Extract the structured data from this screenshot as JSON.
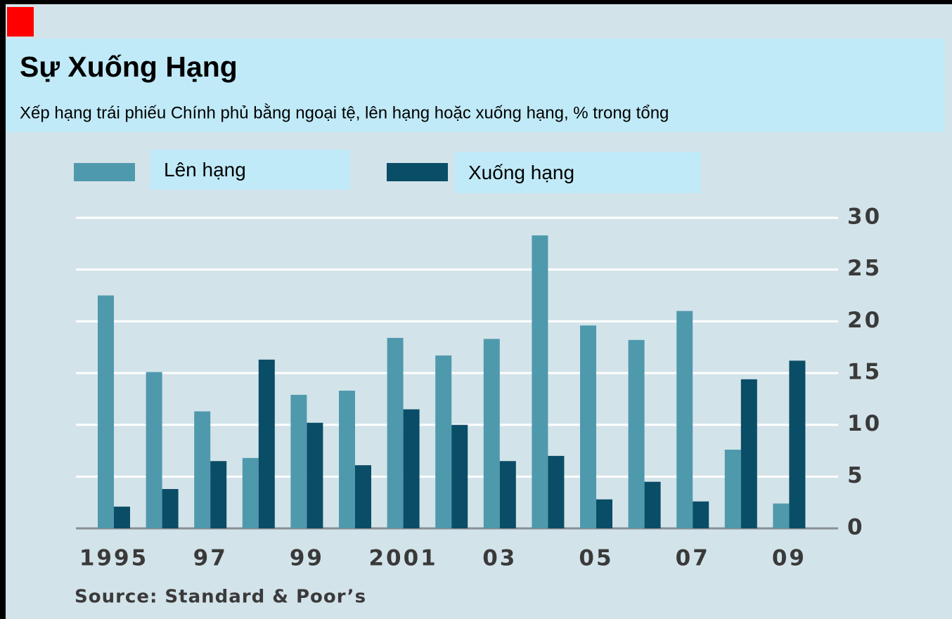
{
  "chart_data": {
    "type": "bar",
    "title": "Sự Xuống Hạng",
    "subtitle": "Xếp hạng trái phiếu Chính phủ bằng ngoại tệ, lên hạng hoặc xuống hạng, % trong tổng",
    "source": "Source: Standard & Poor’s",
    "categories": [
      "1995",
      null,
      "97",
      null,
      "99",
      null,
      "2001",
      null,
      "03",
      null,
      "05",
      null,
      "07",
      null,
      "09"
    ],
    "series": [
      {
        "name": "Lên hạng",
        "color": "#4f99ad",
        "values": [
          22.5,
          15.1,
          11.3,
          6.8,
          12.9,
          13.3,
          18.4,
          16.7,
          18.3,
          28.3,
          19.6,
          18.2,
          21.0,
          7.6,
          2.4
        ]
      },
      {
        "name": "Xuống hạng",
        "color": "#0a4d66",
        "values": [
          2.1,
          3.8,
          6.5,
          16.3,
          10.2,
          6.1,
          11.5,
          10.0,
          6.5,
          7.0,
          2.8,
          4.5,
          2.6,
          14.4,
          16.2
        ]
      }
    ],
    "ylim": [
      0,
      30
    ],
    "yticks": [
      0,
      5,
      10,
      15,
      20,
      25,
      30
    ],
    "grid": true
  }
}
